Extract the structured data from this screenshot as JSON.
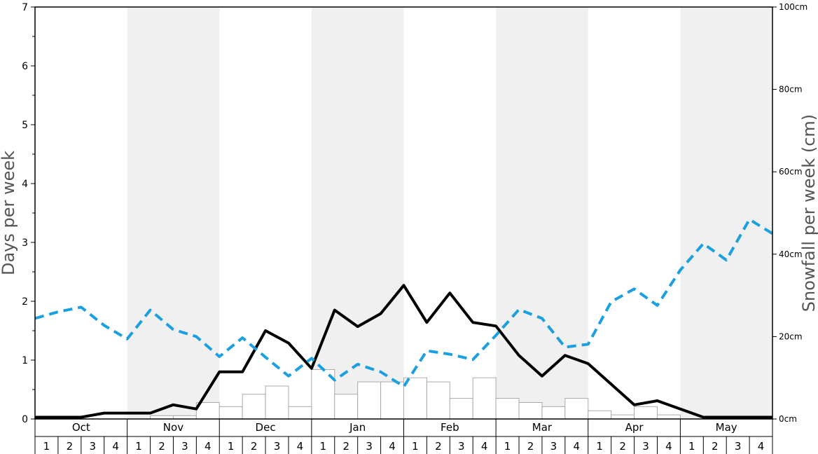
{
  "chart_data": {
    "type": "bar+line",
    "left_axis": {
      "label": "Days per week",
      "min": 0,
      "max": 7,
      "ticks": [
        0,
        1,
        2,
        3,
        4,
        5,
        6,
        7
      ],
      "minor_ticks": [
        0.5,
        1.5,
        2.5,
        3.5,
        4.5,
        5.5,
        6.5
      ]
    },
    "right_axis": {
      "label": "Snowfall per week (cm)",
      "min": 0,
      "max": 100,
      "ticks": [
        0,
        20,
        40,
        60,
        80,
        100
      ],
      "tick_labels": [
        "0cm",
        "20cm",
        "40cm",
        "60cm",
        "80cm",
        "100cm"
      ]
    },
    "months": [
      "Oct",
      "Nov",
      "Dec",
      "Jan",
      "Feb",
      "Mar",
      "Apr",
      "May"
    ],
    "weeks": [
      "1",
      "2",
      "3",
      "4"
    ],
    "shaded_months": [
      1,
      3,
      5,
      7
    ],
    "colors": {
      "band": "#f0f0f0",
      "bar_stroke": "#aaaaaa",
      "black_line": "#000000",
      "blue_line": "#1a9fe0"
    },
    "series": [
      {
        "type": "bar",
        "axis": "right",
        "values": [
          0,
          0,
          0,
          0,
          0,
          0.8,
          0.8,
          4,
          3,
          6,
          8,
          3,
          12,
          6,
          9,
          9,
          10,
          9,
          5,
          10,
          5,
          4,
          3,
          5,
          2,
          1,
          3,
          1,
          0,
          0,
          0,
          0
        ]
      },
      {
        "type": "line",
        "axis": "left",
        "style": "solid",
        "values": [
          0.03,
          0.03,
          0.03,
          0.1,
          0.1,
          0.1,
          0.24,
          0.17,
          0.8,
          0.8,
          1.5,
          1.29,
          0.86,
          1.85,
          1.57,
          1.79,
          2.27,
          1.64,
          2.14,
          1.64,
          1.58,
          1.08,
          0.73,
          1.08,
          0.94,
          0.59,
          0.24,
          0.31,
          0.17,
          0.03,
          0.03,
          0.03,
          0.03
        ]
      },
      {
        "type": "line",
        "axis": "left",
        "style": "dashed",
        "values": [
          1.71,
          1.82,
          1.9,
          1.59,
          1.36,
          1.85,
          1.52,
          1.4,
          1.06,
          1.38,
          1.05,
          0.73,
          1.03,
          0.66,
          0.93,
          0.8,
          0.55,
          1.16,
          1.1,
          1.01,
          1.42,
          1.86,
          1.71,
          1.22,
          1.27,
          1.99,
          2.21,
          1.93,
          2.53,
          2.98,
          2.7,
          3.39,
          3.15
        ]
      }
    ]
  }
}
